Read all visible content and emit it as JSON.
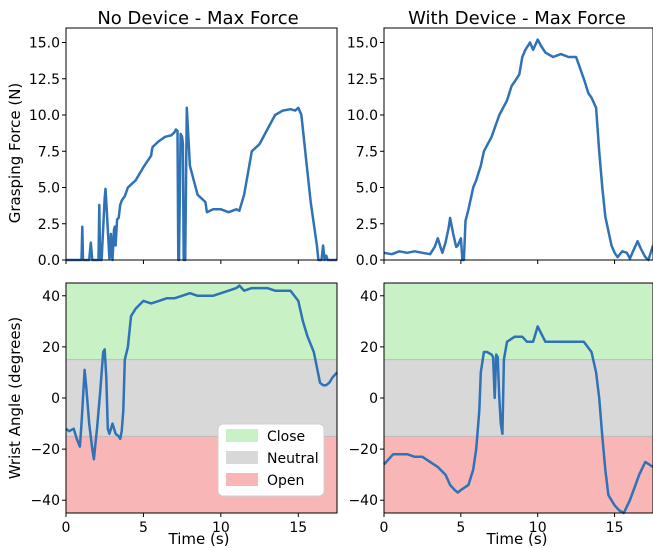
{
  "chart_data": [
    {
      "type": "line",
      "title": "No Device - Max Force",
      "xlabel": "",
      "ylabel": "Grasping Force (N)",
      "xlim": [
        0,
        17.5
      ],
      "ylim": [
        0,
        16
      ],
      "yticks": [
        "0.0",
        "2.5",
        "5.0",
        "7.5",
        "10.0",
        "12.5",
        "15.0"
      ],
      "color": "#2f72b6",
      "series": [
        {
          "x": [
            0,
            0.5,
            1.0,
            1.05,
            1.1,
            1.2,
            1.5,
            1.6,
            1.7,
            2.0,
            2.1,
            2.15,
            2.2,
            2.3,
            2.5,
            2.55,
            2.6,
            2.8,
            2.85,
            2.9,
            3.0,
            3.1,
            3.15,
            3.2,
            3.3,
            3.4,
            3.5,
            3.6,
            3.8,
            4.0,
            4.2,
            4.5,
            5.0,
            5.5,
            5.55,
            5.6,
            5.8,
            6.0,
            6.4,
            6.8,
            7.0,
            7.1,
            7.2,
            7.25,
            7.3,
            7.4,
            7.5,
            7.55,
            7.6,
            7.7,
            7.8,
            8.0,
            8.5,
            9.0,
            9.1,
            9.5,
            10.0,
            10.5,
            11.0,
            11.2,
            11.5,
            12.0,
            12.5,
            13.0,
            13.5,
            14.0,
            14.5,
            14.8,
            15.0,
            15.2,
            15.5,
            15.8,
            16.0,
            16.2,
            16.3,
            16.5,
            16.6,
            16.7,
            16.8,
            16.9,
            17.0,
            17.1,
            17.5
          ],
          "y": [
            0,
            0,
            0,
            2.3,
            0,
            0,
            0,
            1.2,
            0,
            0,
            0,
            3.8,
            0,
            0,
            4.3,
            4.9,
            4.0,
            0.1,
            0.2,
            1.8,
            0,
            2.1,
            2.3,
            1.0,
            2.8,
            2.9,
            3.8,
            4.1,
            4.4,
            5.0,
            5.2,
            5.5,
            6.4,
            7.2,
            7.6,
            7.8,
            8.0,
            8.2,
            8.5,
            8.6,
            8.8,
            9.0,
            8.9,
            0,
            0,
            8.7,
            8.5,
            8.0,
            0,
            0,
            10.5,
            6.5,
            4.5,
            4.0,
            3.3,
            3.5,
            3.5,
            3.3,
            3.5,
            3.4,
            4.5,
            7.5,
            8.0,
            9.0,
            10.0,
            10.3,
            10.4,
            10.3,
            10.5,
            10.0,
            7.0,
            4.0,
            2.5,
            1.0,
            0,
            0,
            1.0,
            0,
            0.3,
            0,
            0,
            0,
            0
          ]
        }
      ]
    },
    {
      "type": "line",
      "title": "With Device - Max Force",
      "xlabel": "",
      "ylabel": "",
      "xlim": [
        0,
        17.5
      ],
      "ylim": [
        0,
        16
      ],
      "yticks": [
        "0.0",
        "2.5",
        "5.0",
        "7.5",
        "10.0",
        "12.5",
        "15.0"
      ],
      "color": "#2f72b6",
      "series": [
        {
          "x": [
            0,
            0.5,
            1.0,
            1.5,
            2.0,
            2.5,
            3.0,
            3.3,
            3.5,
            3.7,
            3.8,
            4.0,
            4.2,
            4.3,
            4.5,
            4.7,
            4.8,
            5.0,
            5.1,
            5.2,
            5.3,
            5.5,
            5.8,
            6.0,
            6.3,
            6.5,
            7.0,
            7.5,
            8.0,
            8.3,
            8.5,
            8.8,
            9.0,
            9.2,
            9.5,
            9.7,
            10.0,
            10.2,
            10.5,
            11.0,
            11.5,
            12.0,
            12.5,
            13.0,
            13.3,
            13.5,
            13.8,
            14.0,
            14.2,
            14.4,
            14.6,
            14.8,
            15.0,
            15.2,
            15.5,
            15.8,
            16.0,
            16.2,
            16.5,
            16.7,
            17.0,
            17.2,
            17.5
          ],
          "y": [
            0.5,
            0.4,
            0.6,
            0.5,
            0.6,
            0.5,
            0.4,
            0.9,
            1.5,
            0.8,
            0.5,
            1.2,
            2.2,
            2.9,
            1.8,
            0.9,
            1.0,
            1.5,
            0,
            0,
            2.7,
            3.5,
            5.0,
            5.5,
            6.5,
            7.5,
            8.5,
            10.0,
            11.0,
            12.0,
            12.3,
            12.8,
            14.0,
            14.5,
            15.0,
            14.5,
            15.2,
            14.8,
            14.3,
            14.0,
            14.2,
            14.0,
            14.0,
            12.5,
            11.5,
            11.2,
            10.5,
            7.5,
            5.0,
            3.0,
            2.0,
            1.0,
            0.5,
            0.2,
            0.6,
            0.5,
            0.1,
            0.6,
            1.3,
            0.8,
            0.2,
            0,
            1.0
          ]
        }
      ]
    },
    {
      "type": "line",
      "title": "",
      "xlabel": "Time (s)",
      "ylabel": "Wrist Angle (degrees)",
      "xlim": [
        0,
        17.5
      ],
      "ylim": [
        -45,
        45
      ],
      "xticks": [
        "0",
        "5",
        "10",
        "15"
      ],
      "yticks": [
        "−40",
        "−20",
        "0",
        "20",
        "40"
      ],
      "regions": [
        {
          "name": "Close",
          "from": 15,
          "to": 45,
          "color": "#c8f1c6"
        },
        {
          "name": "Neutral",
          "from": -15,
          "to": 15,
          "color": "#d8d8d8"
        },
        {
          "name": "Open",
          "from": -45,
          "to": -15,
          "color": "#f8b6b6"
        }
      ],
      "legend_position": "lower-right",
      "color": "#2f72b6",
      "series": [
        {
          "x": [
            0,
            0.2,
            0.5,
            0.7,
            0.9,
            1.0,
            1.1,
            1.2,
            1.3,
            1.5,
            1.7,
            1.8,
            1.9,
            2.0,
            2.2,
            2.4,
            2.5,
            2.6,
            2.7,
            2.8,
            3.0,
            3.2,
            3.4,
            3.5,
            3.6,
            3.7,
            3.8,
            4.0,
            4.2,
            4.5,
            5.0,
            5.5,
            6.0,
            6.5,
            7.0,
            7.5,
            8.0,
            8.5,
            9.0,
            9.5,
            10.0,
            10.5,
            11.0,
            11.2,
            11.5,
            12.0,
            12.5,
            13.0,
            13.5,
            14.0,
            14.5,
            15.0,
            15.3,
            15.6,
            16.0,
            16.2,
            16.4,
            16.6,
            16.8,
            17.0,
            17.2,
            17.5
          ],
          "y": [
            -12,
            -13,
            -12,
            -16,
            -19,
            -10,
            0,
            11,
            5,
            -10,
            -20,
            -24,
            -18,
            -12,
            2,
            18,
            19,
            8,
            -12,
            -14,
            -10,
            -14,
            -15,
            -16,
            -13,
            -5,
            15,
            20,
            32,
            35,
            38,
            37,
            38,
            39,
            39,
            40,
            41,
            40,
            40,
            40,
            41,
            42,
            43,
            44,
            42,
            43,
            43,
            43,
            42,
            42,
            42,
            38,
            30,
            24,
            18,
            12,
            6,
            5,
            5,
            6,
            8,
            10
          ]
        }
      ]
    },
    {
      "type": "line",
      "title": "",
      "xlabel": "Time (s)",
      "ylabel": "",
      "xlim": [
        0,
        17.5
      ],
      "ylim": [
        -45,
        45
      ],
      "xticks": [
        "0",
        "5",
        "10",
        "15"
      ],
      "yticks": [
        "−40",
        "−20",
        "0",
        "20",
        "40"
      ],
      "regions": [
        {
          "name": "Close",
          "from": 15,
          "to": 45,
          "color": "#c8f1c6"
        },
        {
          "name": "Neutral",
          "from": -15,
          "to": 15,
          "color": "#d8d8d8"
        },
        {
          "name": "Open",
          "from": -45,
          "to": -15,
          "color": "#f8b6b6"
        }
      ],
      "color": "#2f72b6",
      "series": [
        {
          "x": [
            0,
            0.3,
            0.6,
            1.0,
            1.5,
            2.0,
            2.5,
            3.0,
            3.5,
            4.0,
            4.3,
            4.6,
            4.8,
            5.0,
            5.5,
            5.8,
            6.0,
            6.2,
            6.3,
            6.5,
            6.7,
            7.0,
            7.1,
            7.2,
            7.3,
            7.4,
            7.5,
            7.6,
            7.7,
            7.8,
            8.0,
            8.5,
            9.0,
            9.3,
            9.5,
            9.7,
            10.0,
            10.5,
            11.0,
            11.5,
            12.0,
            12.5,
            13.0,
            13.5,
            13.8,
            14.0,
            14.2,
            14.4,
            14.6,
            15.0,
            15.3,
            15.6,
            16.0,
            16.3,
            16.6,
            17.0,
            17.5
          ],
          "y": [
            -26,
            -24,
            -22,
            -22,
            -22,
            -23,
            -23,
            -25,
            -27,
            -30,
            -34,
            -36,
            -37,
            -36,
            -34,
            -28,
            -20,
            -5,
            10,
            18,
            18,
            17,
            16,
            0,
            17,
            16,
            0,
            -10,
            -14,
            15,
            22,
            24,
            24,
            22,
            22,
            22,
            28,
            22,
            22,
            22,
            22,
            22,
            22,
            18,
            10,
            0,
            -15,
            -28,
            -38,
            -42,
            -44,
            -45,
            -40,
            -35,
            -30,
            -25,
            -27
          ]
        }
      ]
    }
  ]
}
